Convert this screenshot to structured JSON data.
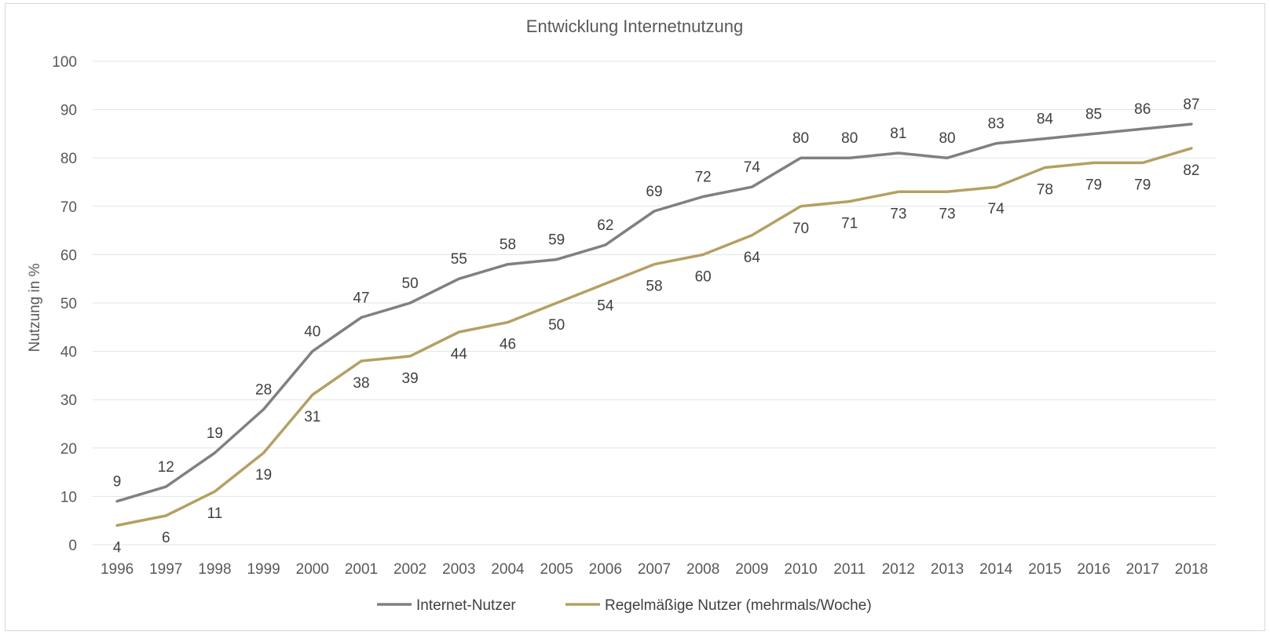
{
  "chart_data": {
    "type": "line",
    "title": "Entwicklung Internetnutzung",
    "xlabel": "",
    "ylabel": "Nutzung in %",
    "ylim": [
      0,
      100
    ],
    "yticks": [
      0,
      10,
      20,
      30,
      40,
      50,
      60,
      70,
      80,
      90,
      100
    ],
    "grid": true,
    "legend_position": "bottom",
    "categories": [
      "1996",
      "1997",
      "1998",
      "1999",
      "2000",
      "2001",
      "2002",
      "2003",
      "2004",
      "2005",
      "2006",
      "2007",
      "2008",
      "2009",
      "2010",
      "2011",
      "2012",
      "2013",
      "2014",
      "2015",
      "2016",
      "2017",
      "2018"
    ],
    "series": [
      {
        "name": "Internet-Nutzer",
        "color": "#808080",
        "label_position": "above",
        "values": [
          9,
          12,
          19,
          28,
          40,
          47,
          50,
          55,
          58,
          59,
          62,
          69,
          72,
          74,
          80,
          80,
          81,
          80,
          83,
          84,
          85,
          86,
          87
        ]
      },
      {
        "name": "Regelmäßige Nutzer (mehrmals/Woche)",
        "color": "#b5a063",
        "label_position": "below",
        "values": [
          4,
          6,
          11,
          19,
          31,
          38,
          39,
          44,
          46,
          50,
          54,
          58,
          60,
          64,
          70,
          71,
          73,
          73,
          74,
          78,
          79,
          79,
          82
        ]
      }
    ]
  }
}
